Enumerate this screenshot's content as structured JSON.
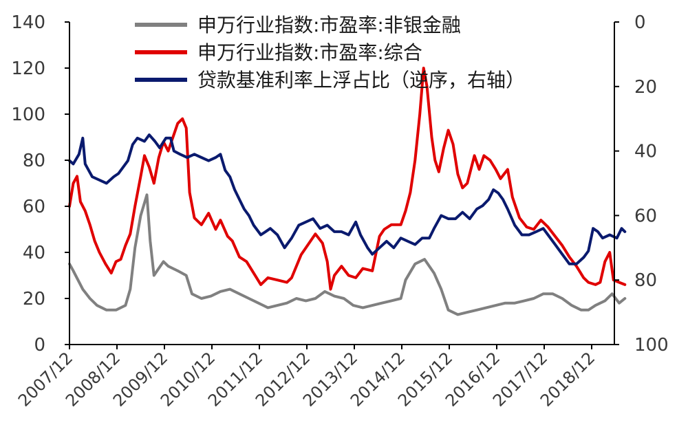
{
  "chart_data": {
    "type": "line",
    "x_ticks": [
      "2007/12",
      "2008/12",
      "2009/12",
      "2010/12",
      "2011/12",
      "2012/12",
      "2013/12",
      "2014/12",
      "2015/12",
      "2016/12",
      "2017/12",
      "2018/12"
    ],
    "left_axis": {
      "ticks": [
        "0",
        "20",
        "40",
        "60",
        "80",
        "100",
        "120",
        "140"
      ],
      "range": [
        0,
        140
      ]
    },
    "right_axis": {
      "ticks": [
        "0",
        "20",
        "40",
        "60",
        "80",
        "100"
      ],
      "range": [
        0,
        100
      ],
      "inverted": true
    },
    "legend_position": "top",
    "series": [
      {
        "name": "申万行业指数:市盈率:非银金融",
        "axis": "left",
        "color": "#808080",
        "points": [
          [
            2007.92,
            35
          ],
          [
            2008.0,
            32
          ],
          [
            2008.1,
            28
          ],
          [
            2008.2,
            24
          ],
          [
            2008.35,
            20
          ],
          [
            2008.5,
            17
          ],
          [
            2008.7,
            15
          ],
          [
            2008.9,
            15
          ],
          [
            2009.0,
            16
          ],
          [
            2009.1,
            17
          ],
          [
            2009.2,
            24
          ],
          [
            2009.3,
            42
          ],
          [
            2009.42,
            56
          ],
          [
            2009.55,
            65
          ],
          [
            2009.62,
            45
          ],
          [
            2009.7,
            30
          ],
          [
            2009.8,
            33
          ],
          [
            2009.9,
            36
          ],
          [
            2010.0,
            34
          ],
          [
            2010.2,
            32
          ],
          [
            2010.38,
            30
          ],
          [
            2010.5,
            22
          ],
          [
            2010.7,
            20
          ],
          [
            2010.9,
            21
          ],
          [
            2011.1,
            23
          ],
          [
            2011.3,
            24
          ],
          [
            2011.5,
            22
          ],
          [
            2011.7,
            20
          ],
          [
            2011.9,
            18
          ],
          [
            2012.1,
            16
          ],
          [
            2012.3,
            17
          ],
          [
            2012.5,
            18
          ],
          [
            2012.7,
            20
          ],
          [
            2012.9,
            19
          ],
          [
            2013.1,
            20
          ],
          [
            2013.3,
            23
          ],
          [
            2013.5,
            21
          ],
          [
            2013.7,
            20
          ],
          [
            2013.9,
            17
          ],
          [
            2014.1,
            16
          ],
          [
            2014.3,
            17
          ],
          [
            2014.5,
            18
          ],
          [
            2014.7,
            19
          ],
          [
            2014.9,
            20
          ],
          [
            2015.0,
            28
          ],
          [
            2015.2,
            35
          ],
          [
            2015.4,
            37
          ],
          [
            2015.6,
            31
          ],
          [
            2015.75,
            24
          ],
          [
            2015.9,
            15
          ],
          [
            2016.1,
            13
          ],
          [
            2016.3,
            14
          ],
          [
            2016.5,
            15
          ],
          [
            2016.7,
            16
          ],
          [
            2016.9,
            17
          ],
          [
            2017.1,
            18
          ],
          [
            2017.3,
            18
          ],
          [
            2017.5,
            19
          ],
          [
            2017.7,
            20
          ],
          [
            2017.9,
            22
          ],
          [
            2018.1,
            22
          ],
          [
            2018.3,
            20
          ],
          [
            2018.5,
            17
          ],
          [
            2018.7,
            15
          ],
          [
            2018.85,
            15
          ],
          [
            2019.0,
            17
          ],
          [
            2019.2,
            19
          ],
          [
            2019.35,
            22
          ],
          [
            2019.5,
            18
          ],
          [
            2019.62,
            20
          ]
        ]
      },
      {
        "name": "申万行业指数:市盈率:综合",
        "axis": "left",
        "color": "#e00000",
        "points": [
          [
            2007.92,
            60
          ],
          [
            2008.0,
            70
          ],
          [
            2008.08,
            73
          ],
          [
            2008.15,
            62
          ],
          [
            2008.25,
            58
          ],
          [
            2008.35,
            52
          ],
          [
            2008.45,
            45
          ],
          [
            2008.55,
            40
          ],
          [
            2008.68,
            35
          ],
          [
            2008.8,
            31
          ],
          [
            2008.9,
            36
          ],
          [
            2009.0,
            37
          ],
          [
            2009.1,
            43
          ],
          [
            2009.2,
            48
          ],
          [
            2009.3,
            60
          ],
          [
            2009.42,
            73
          ],
          [
            2009.5,
            82
          ],
          [
            2009.6,
            77
          ],
          [
            2009.7,
            70
          ],
          [
            2009.8,
            81
          ],
          [
            2009.9,
            88
          ],
          [
            2010.0,
            84
          ],
          [
            2010.1,
            90
          ],
          [
            2010.2,
            96
          ],
          [
            2010.3,
            98
          ],
          [
            2010.38,
            94
          ],
          [
            2010.45,
            66
          ],
          [
            2010.55,
            55
          ],
          [
            2010.7,
            52
          ],
          [
            2010.85,
            57
          ],
          [
            2011.0,
            50
          ],
          [
            2011.1,
            54
          ],
          [
            2011.25,
            47
          ],
          [
            2011.35,
            45
          ],
          [
            2011.5,
            38
          ],
          [
            2011.65,
            36
          ],
          [
            2011.8,
            31
          ],
          [
            2011.95,
            26
          ],
          [
            2012.1,
            29
          ],
          [
            2012.3,
            28
          ],
          [
            2012.5,
            27
          ],
          [
            2012.6,
            29
          ],
          [
            2012.8,
            39
          ],
          [
            2013.0,
            45
          ],
          [
            2013.1,
            48
          ],
          [
            2013.25,
            44
          ],
          [
            2013.35,
            36
          ],
          [
            2013.42,
            24
          ],
          [
            2013.5,
            30
          ],
          [
            2013.65,
            34
          ],
          [
            2013.8,
            30
          ],
          [
            2013.95,
            29
          ],
          [
            2014.1,
            33
          ],
          [
            2014.3,
            32
          ],
          [
            2014.45,
            47
          ],
          [
            2014.55,
            50
          ],
          [
            2014.7,
            52
          ],
          [
            2014.9,
            52
          ],
          [
            2015.0,
            58
          ],
          [
            2015.1,
            66
          ],
          [
            2015.2,
            80
          ],
          [
            2015.3,
            100
          ],
          [
            2015.38,
            120
          ],
          [
            2015.45,
            112
          ],
          [
            2015.55,
            90
          ],
          [
            2015.62,
            80
          ],
          [
            2015.7,
            75
          ],
          [
            2015.8,
            85
          ],
          [
            2015.9,
            93
          ],
          [
            2016.0,
            87
          ],
          [
            2016.1,
            74
          ],
          [
            2016.2,
            68
          ],
          [
            2016.3,
            70
          ],
          [
            2016.45,
            82
          ],
          [
            2016.55,
            76
          ],
          [
            2016.65,
            82
          ],
          [
            2016.78,
            80
          ],
          [
            2016.9,
            76
          ],
          [
            2017.0,
            72
          ],
          [
            2017.15,
            76
          ],
          [
            2017.25,
            64
          ],
          [
            2017.4,
            55
          ],
          [
            2017.55,
            51
          ],
          [
            2017.7,
            50
          ],
          [
            2017.85,
            54
          ],
          [
            2018.0,
            51
          ],
          [
            2018.15,
            47
          ],
          [
            2018.3,
            43
          ],
          [
            2018.45,
            38
          ],
          [
            2018.6,
            34
          ],
          [
            2018.75,
            29
          ],
          [
            2018.85,
            27
          ],
          [
            2019.0,
            26
          ],
          [
            2019.1,
            27
          ],
          [
            2019.2,
            36
          ],
          [
            2019.3,
            40
          ],
          [
            2019.38,
            28
          ],
          [
            2019.5,
            27
          ],
          [
            2019.62,
            26
          ]
        ]
      },
      {
        "name": "贷款基准利率上浮占比（逆序，右轴）",
        "axis": "right",
        "color": "#0a1a6e",
        "points": [
          [
            2007.92,
            43
          ],
          [
            2008.0,
            44
          ],
          [
            2008.12,
            41
          ],
          [
            2008.2,
            36
          ],
          [
            2008.25,
            44
          ],
          [
            2008.4,
            48
          ],
          [
            2008.55,
            49
          ],
          [
            2008.7,
            50
          ],
          [
            2008.85,
            48
          ],
          [
            2008.95,
            47
          ],
          [
            2009.05,
            45
          ],
          [
            2009.15,
            43
          ],
          [
            2009.25,
            38
          ],
          [
            2009.35,
            36
          ],
          [
            2009.5,
            37
          ],
          [
            2009.6,
            35
          ],
          [
            2009.72,
            37
          ],
          [
            2009.82,
            39
          ],
          [
            2009.95,
            36
          ],
          [
            2010.05,
            36
          ],
          [
            2010.12,
            40
          ],
          [
            2010.25,
            41
          ],
          [
            2010.4,
            42
          ],
          [
            2010.55,
            41
          ],
          [
            2010.7,
            42
          ],
          [
            2010.85,
            43
          ],
          [
            2011.0,
            42
          ],
          [
            2011.1,
            41
          ],
          [
            2011.2,
            46
          ],
          [
            2011.3,
            48
          ],
          [
            2011.4,
            52
          ],
          [
            2011.5,
            55
          ],
          [
            2011.6,
            58
          ],
          [
            2011.7,
            60
          ],
          [
            2011.8,
            63
          ],
          [
            2011.95,
            66
          ],
          [
            2012.05,
            65
          ],
          [
            2012.15,
            64
          ],
          [
            2012.3,
            66
          ],
          [
            2012.45,
            70
          ],
          [
            2012.6,
            67
          ],
          [
            2012.75,
            63
          ],
          [
            2012.9,
            62
          ],
          [
            2013.05,
            61
          ],
          [
            2013.2,
            64
          ],
          [
            2013.35,
            63
          ],
          [
            2013.5,
            65
          ],
          [
            2013.65,
            65
          ],
          [
            2013.8,
            66
          ],
          [
            2013.95,
            62
          ],
          [
            2014.05,
            66
          ],
          [
            2014.2,
            70
          ],
          [
            2014.3,
            72
          ],
          [
            2014.45,
            70
          ],
          [
            2014.6,
            68
          ],
          [
            2014.75,
            70
          ],
          [
            2014.9,
            67
          ],
          [
            2015.05,
            68
          ],
          [
            2015.2,
            69
          ],
          [
            2015.35,
            67
          ],
          [
            2015.5,
            67
          ],
          [
            2015.6,
            64
          ],
          [
            2015.75,
            60
          ],
          [
            2015.9,
            61
          ],
          [
            2016.05,
            61
          ],
          [
            2016.2,
            59
          ],
          [
            2016.35,
            61
          ],
          [
            2016.5,
            58
          ],
          [
            2016.62,
            57
          ],
          [
            2016.75,
            55
          ],
          [
            2016.85,
            52
          ],
          [
            2016.95,
            53
          ],
          [
            2017.05,
            55
          ],
          [
            2017.15,
            58
          ],
          [
            2017.3,
            63
          ],
          [
            2017.45,
            66
          ],
          [
            2017.6,
            66
          ],
          [
            2017.75,
            65
          ],
          [
            2017.9,
            64
          ],
          [
            2018.0,
            66
          ],
          [
            2018.15,
            69
          ],
          [
            2018.3,
            72
          ],
          [
            2018.45,
            75
          ],
          [
            2018.6,
            75
          ],
          [
            2018.75,
            73
          ],
          [
            2018.85,
            71
          ],
          [
            2018.95,
            64
          ],
          [
            2019.05,
            65
          ],
          [
            2019.15,
            67
          ],
          [
            2019.3,
            66
          ],
          [
            2019.45,
            67
          ],
          [
            2019.55,
            64
          ],
          [
            2019.62,
            65
          ]
        ]
      }
    ]
  }
}
